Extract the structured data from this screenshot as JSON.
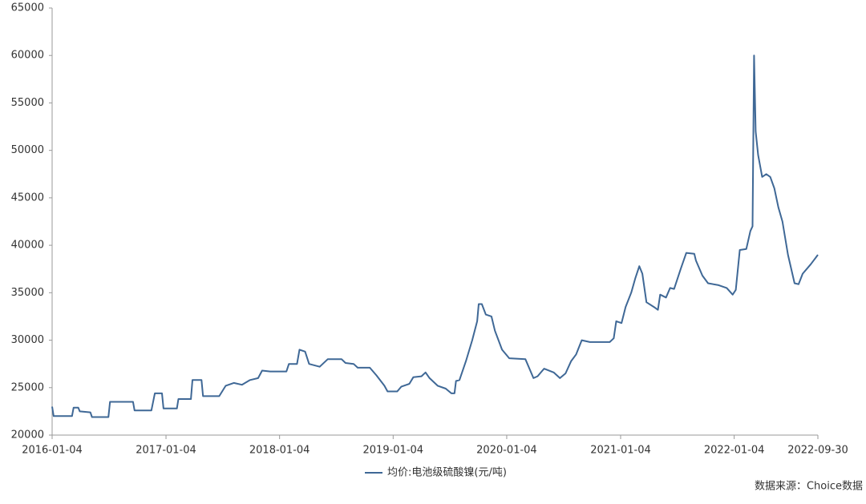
{
  "chart_data": {
    "type": "line",
    "x": [
      "2016-01-04",
      "2016-01-09",
      "2016-03-08",
      "2016-03-13",
      "2016-03-28",
      "2016-04-02",
      "2016-05-06",
      "2016-05-11",
      "2016-07-03",
      "2016-07-08",
      "2016-09-20",
      "2016-09-25",
      "2016-11-18",
      "2016-11-29",
      "2016-12-22",
      "2016-12-27",
      "2017-02-08",
      "2017-02-13",
      "2017-03-25",
      "2017-03-30",
      "2017-04-28",
      "2017-05-03",
      "2017-06-24",
      "2017-07-15",
      "2017-08-10",
      "2017-09-05",
      "2017-10-01",
      "2017-10-27",
      "2017-11-09",
      "2017-12-05",
      "2018-01-26",
      "2018-02-03",
      "2018-03-01",
      "2018-03-09",
      "2018-03-27",
      "2018-04-09",
      "2018-05-13",
      "2018-06-08",
      "2018-07-22",
      "2018-08-04",
      "2018-08-30",
      "2018-09-12",
      "2018-10-21",
      "2018-11-11",
      "2018-12-07",
      "2018-12-17",
      "2019-01-17",
      "2019-01-30",
      "2019-02-25",
      "2019-03-10",
      "2019-04-05",
      "2019-04-18",
      "2019-05-01",
      "2019-05-27",
      "2019-06-22",
      "2019-07-10",
      "2019-07-20",
      "2019-07-25",
      "2019-08-05",
      "2019-08-26",
      "2019-09-15",
      "2019-10-01",
      "2019-10-06",
      "2019-10-16",
      "2019-10-29",
      "2019-11-16",
      "2019-11-27",
      "2019-12-20",
      "2020-01-12",
      "2020-03-04",
      "2020-03-17",
      "2020-03-30",
      "2020-04-12",
      "2020-05-03",
      "2020-06-03",
      "2020-06-23",
      "2020-07-11",
      "2020-07-29",
      "2020-08-14",
      "2020-09-01",
      "2020-09-27",
      "2020-11-30",
      "2020-12-13",
      "2020-12-21",
      "2021-01-07",
      "2021-01-20",
      "2021-02-07",
      "2021-02-20",
      "2021-03-05",
      "2021-03-15",
      "2021-03-28",
      "2021-04-21",
      "2021-05-04",
      "2021-05-11",
      "2021-05-30",
      "2021-06-12",
      "2021-06-25",
      "2021-07-16",
      "2021-08-03",
      "2021-08-29",
      "2021-09-03",
      "2021-09-24",
      "2021-10-12",
      "2021-11-15",
      "2021-12-11",
      "2021-12-30",
      "2022-01-09",
      "2022-01-22",
      "2022-02-12",
      "2022-02-25",
      "2022-03-04",
      "2022-03-09",
      "2022-03-14",
      "2022-03-22",
      "2022-04-04",
      "2022-04-17",
      "2022-04-30",
      "2022-05-13",
      "2022-05-26",
      "2022-06-08",
      "2022-06-26",
      "2022-07-17",
      "2022-07-30",
      "2022-08-12",
      "2022-09-07",
      "2022-09-30"
    ],
    "series": [
      {
        "name": "均价:电池级硫酸镍(元/吨)",
        "color": "#3f6896",
        "values": [
          23000,
          22000,
          22000,
          22900,
          22900,
          22500,
          22400,
          21900,
          21900,
          23500,
          23500,
          22600,
          22600,
          24400,
          24400,
          22800,
          22800,
          23800,
          23800,
          25800,
          25800,
          24100,
          24100,
          25200,
          25500,
          25300,
          25800,
          26000,
          26800,
          26700,
          26700,
          27500,
          27500,
          29000,
          28800,
          27500,
          27200,
          28000,
          28000,
          27600,
          27500,
          27100,
          27100,
          26300,
          25200,
          24600,
          24600,
          25100,
          25400,
          26100,
          26200,
          26600,
          26000,
          25200,
          24900,
          24400,
          24400,
          25700,
          25800,
          27800,
          30000,
          32000,
          33800,
          33800,
          32700,
          32500,
          31000,
          29000,
          28100,
          28000,
          27000,
          26000,
          26200,
          27000,
          26600,
          26000,
          26500,
          27800,
          28500,
          30000,
          29800,
          29800,
          30200,
          32000,
          31800,
          33500,
          35000,
          36500,
          37800,
          37000,
          34000,
          33500,
          33200,
          34800,
          34500,
          35500,
          35400,
          37500,
          39200,
          39100,
          38400,
          36800,
          36000,
          35800,
          35500,
          34800,
          35300,
          39500,
          39600,
          41500,
          42000,
          60000,
          52000,
          49500,
          47200,
          47500,
          47200,
          46000,
          44000,
          42500,
          39000,
          36000,
          35900,
          37000,
          38000,
          39000
        ]
      }
    ],
    "xlim": [
      "2016-01-04",
      "2022-09-30"
    ],
    "xticks": [
      "2016-01-04",
      "2017-01-04",
      "2018-01-04",
      "2019-01-04",
      "2020-01-04",
      "2021-01-04",
      "2022-01-04",
      "2022-09-30"
    ],
    "ylim": [
      20000,
      65000
    ],
    "yticks": [
      20000,
      25000,
      30000,
      35000,
      40000,
      45000,
      50000,
      55000,
      60000,
      65000
    ],
    "grid": false,
    "source": "数据来源：Choice数据"
  }
}
